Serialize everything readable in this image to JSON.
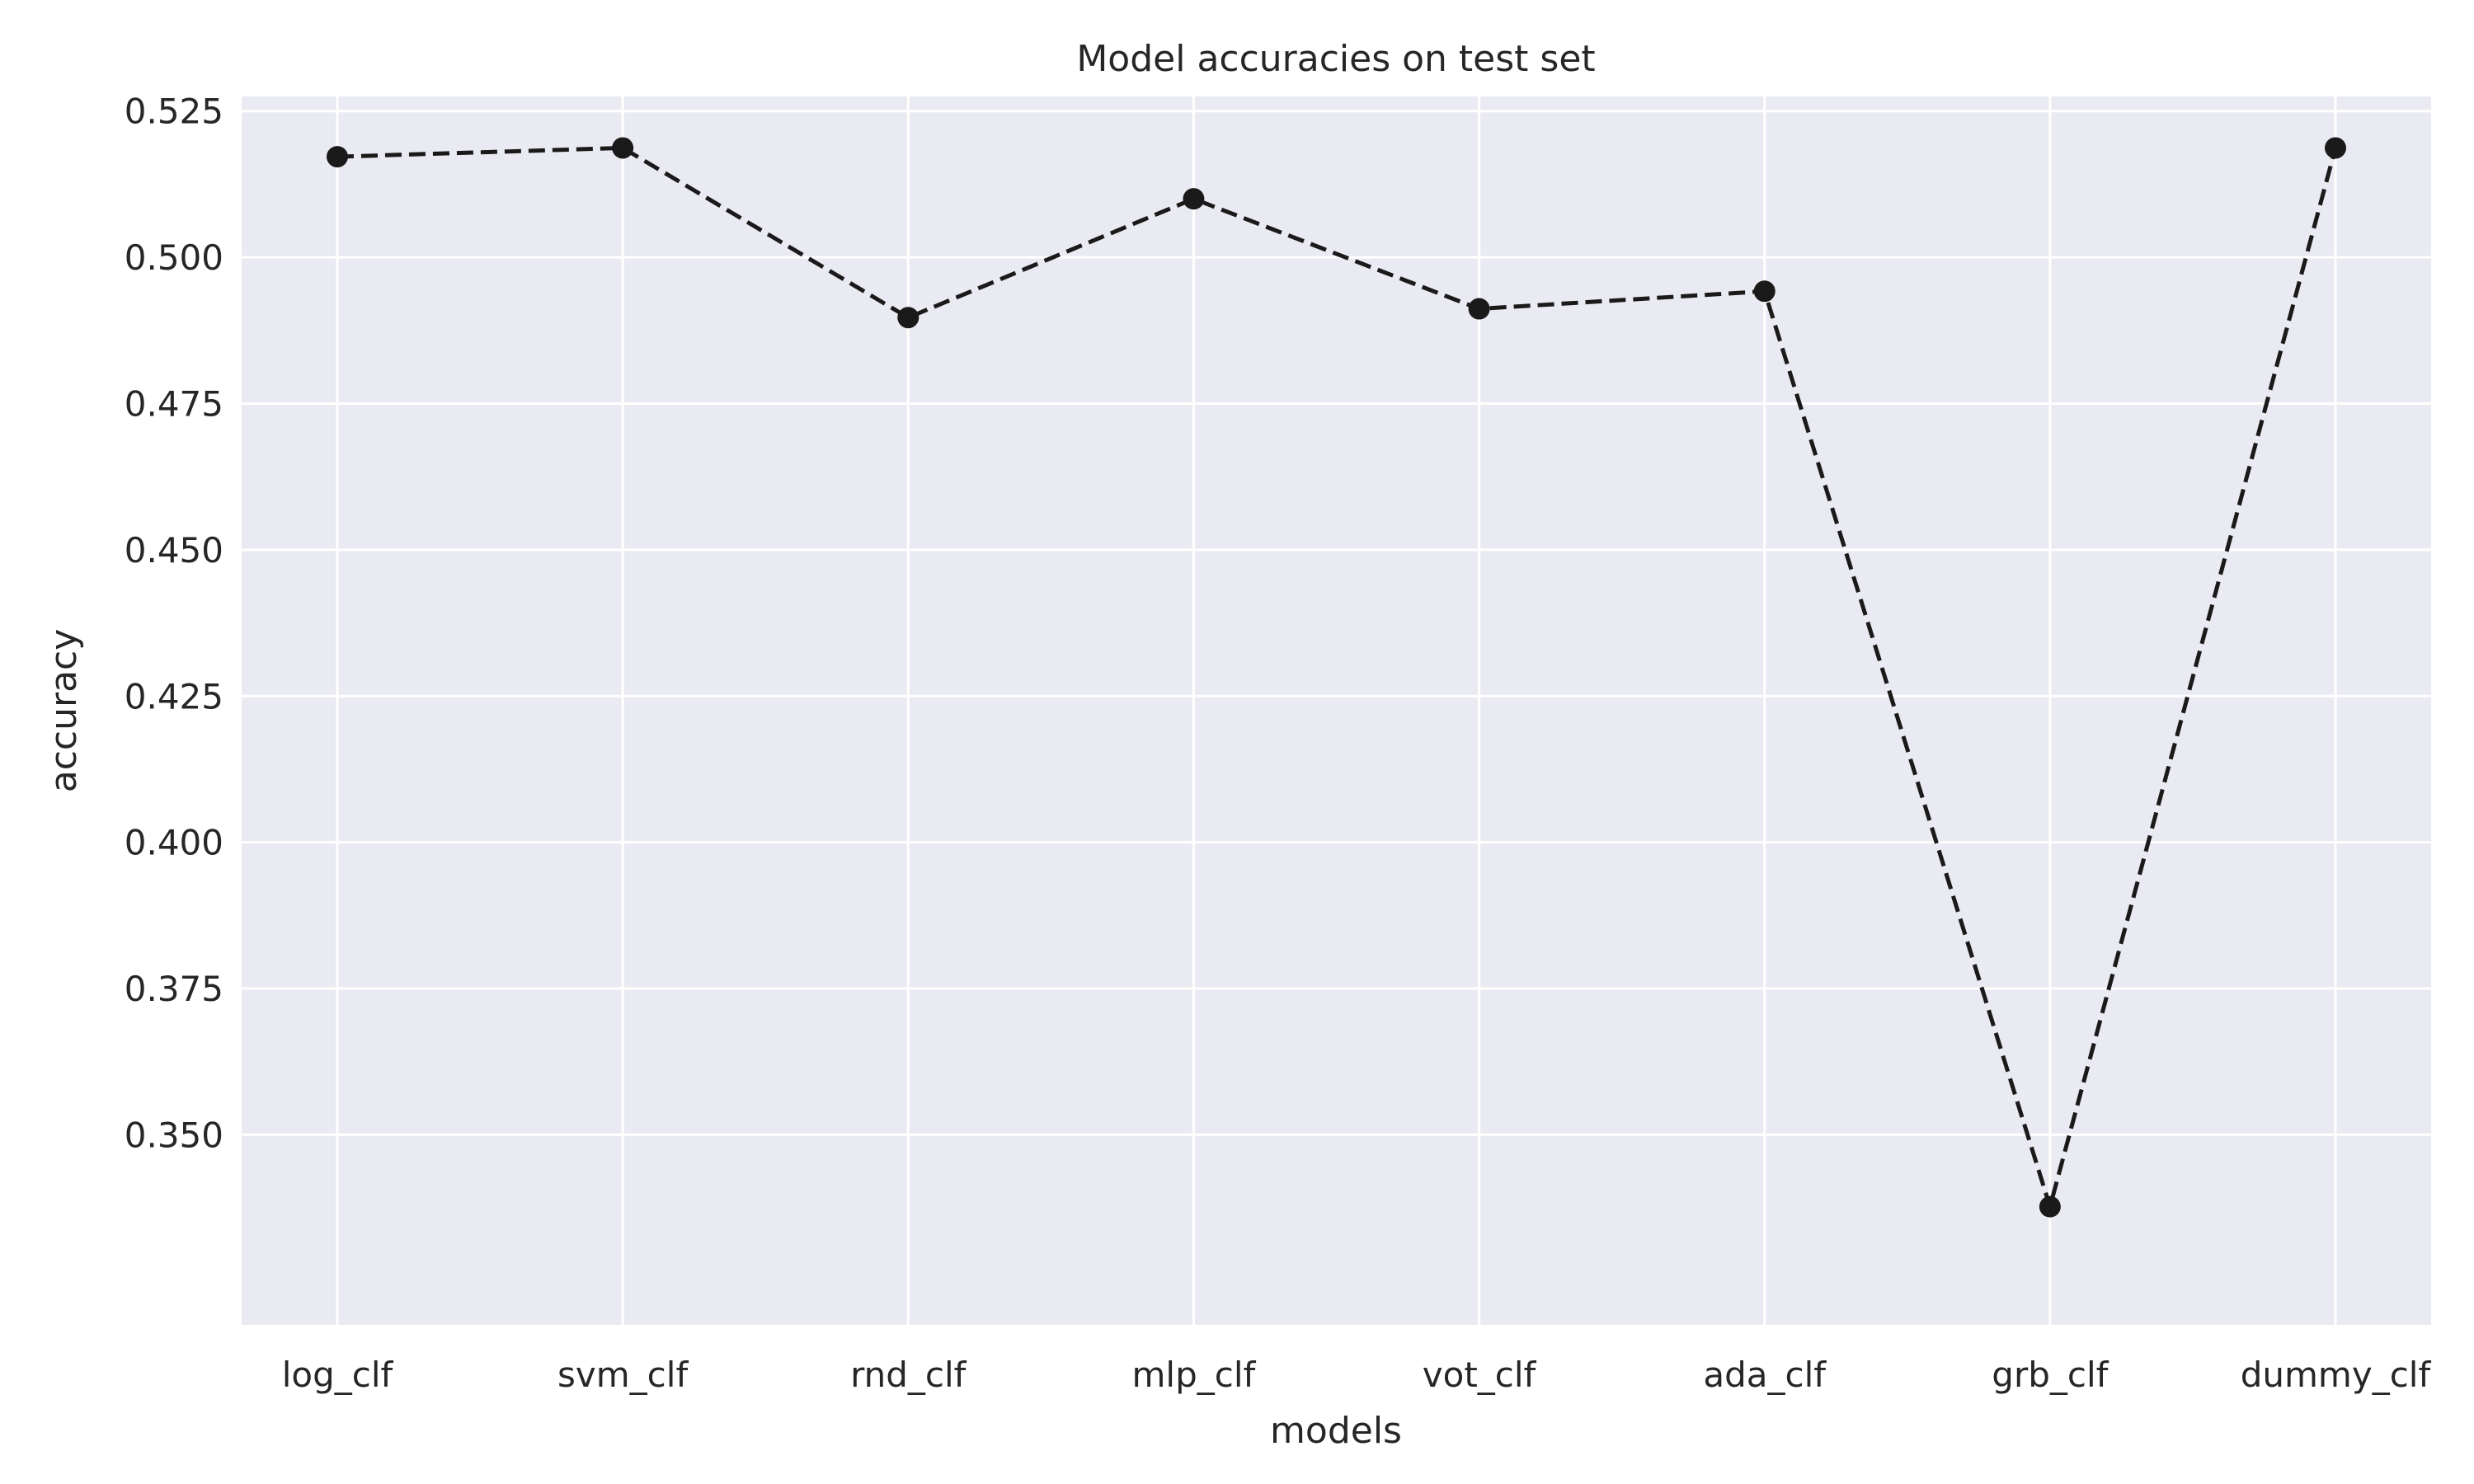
{
  "chart_data": {
    "type": "line",
    "title": "Model accuracies on test set",
    "xlabel": "models",
    "ylabel": "accuracy",
    "categories": [
      "log_clf",
      "svm_clf",
      "rnd_clf",
      "mlp_clf",
      "vot_clf",
      "ada_clf",
      "grb_clf",
      "dummy_clf"
    ],
    "series": [
      {
        "values": [
          0.5172,
          0.5187,
          0.4897,
          0.51,
          0.4912,
          0.4942,
          0.3377,
          0.5187
        ],
        "line_style": "dashed",
        "marker": "circle"
      }
    ],
    "ylim": [
      0.3175,
      0.5275
    ],
    "yticks": [
      "0.350",
      "0.375",
      "0.400",
      "0.425",
      "0.450",
      "0.475",
      "0.500",
      "0.525"
    ],
    "grid": true,
    "legend": "none",
    "colors": {
      "plot_background": "#eaeaf2",
      "grid": "#ffffff",
      "line": "#1a1a1a",
      "text": "#262626"
    }
  }
}
